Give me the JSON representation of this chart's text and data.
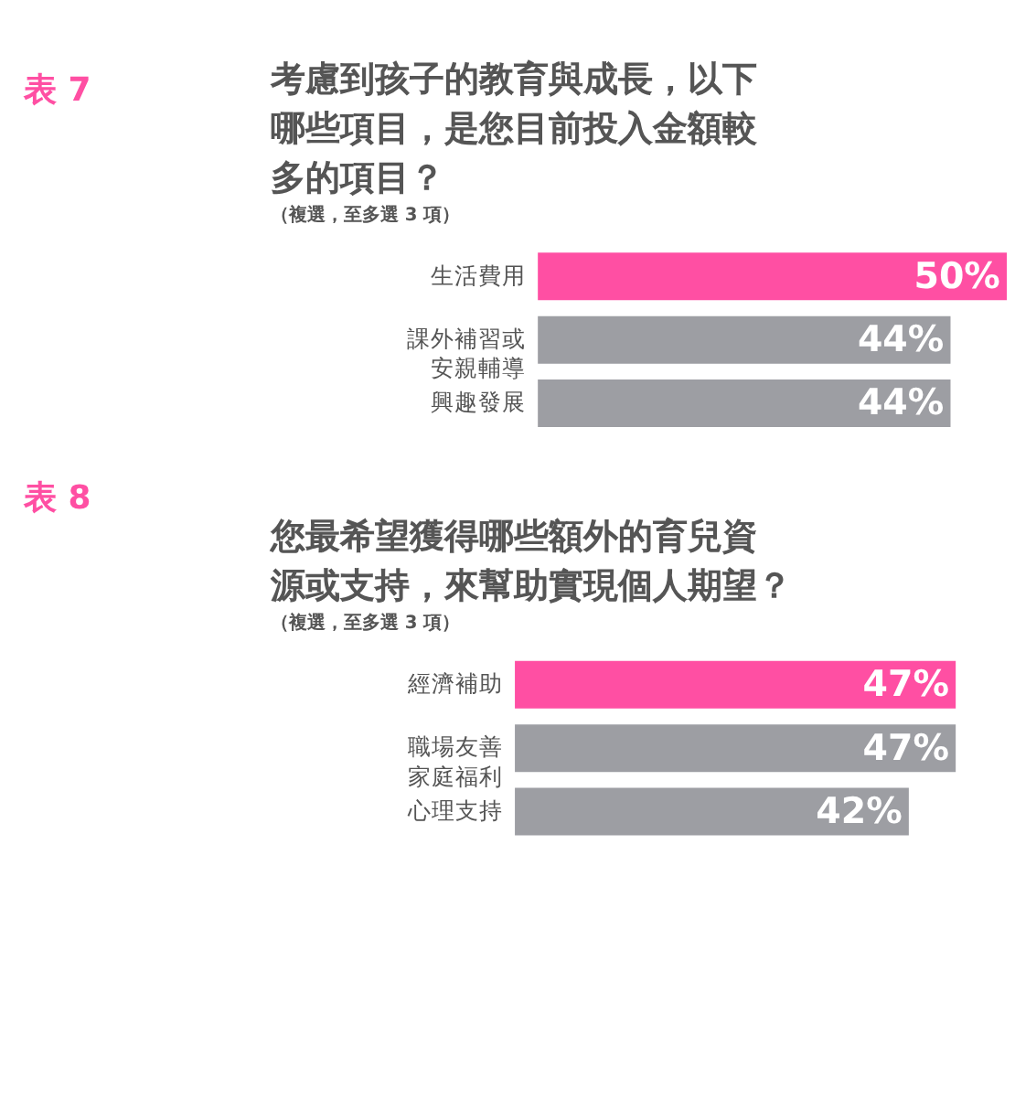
{
  "chart_data": [
    {
      "type": "bar",
      "orientation": "horizontal",
      "title": "考慮到孩子的教育與成長，以下哪些項目，是您目前投入金額較多的項目？",
      "subtitle": "（複選，至多選 3 項）",
      "annotations": [
        "表 7"
      ],
      "categories": [
        "生活費用",
        "課外補習或安親輔導",
        "興趣發展"
      ],
      "values": [
        50,
        44,
        44
      ],
      "colors": [
        "#ff4fa3",
        "#9d9ea3",
        "#9d9ea3"
      ],
      "value_labels": [
        "50%",
        "44%",
        "44%"
      ]
    },
    {
      "type": "bar",
      "orientation": "horizontal",
      "title": "您最希望獲得哪些額外的育兒資源或支持，來幫助實現個人期望？",
      "subtitle": "（複選，至多選 3 項）",
      "annotations": [
        "表 8"
      ],
      "categories": [
        "經濟補助",
        "職場友善家庭福利",
        "心理支持"
      ],
      "values": [
        47,
        47,
        42
      ],
      "colors": [
        "#ff4fa3",
        "#9d9ea3",
        "#9d9ea3"
      ],
      "value_labels": [
        "47%",
        "47%",
        "42%"
      ]
    }
  ]
}
